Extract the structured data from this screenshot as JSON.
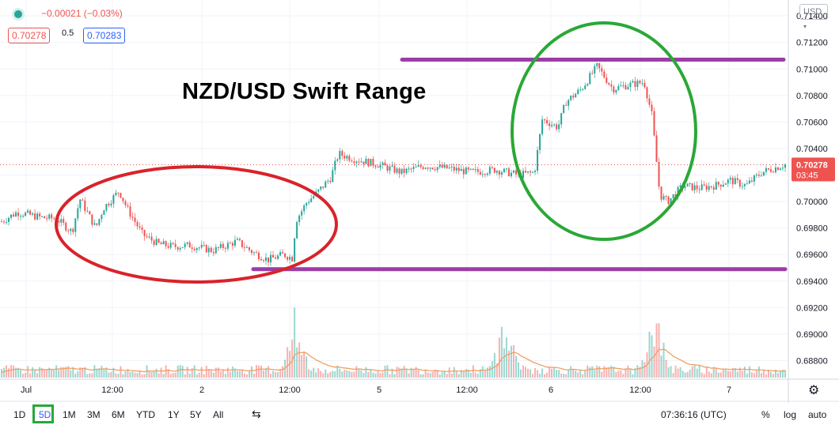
{
  "header": {
    "change_text": "−0.00021 (−0.03%)",
    "bid": "0.70278",
    "spread": "0.5",
    "ask": "0.70283",
    "currency": "USD"
  },
  "title": "NZD/USD Swift Range",
  "last_price": {
    "value": "0.70278",
    "countdown": "03:45"
  },
  "timeframes": [
    "1D",
    "5D",
    "1M",
    "3M",
    "6M",
    "YTD",
    "1Y",
    "5Y",
    "All"
  ],
  "active_timeframe": "5D",
  "clock": "07:36:16 (UTC)",
  "options": {
    "percent": "%",
    "log": "log",
    "auto": "auto"
  },
  "colors": {
    "up": "#26a69a",
    "down": "#ef5350",
    "red_ellipse": "#d9232a",
    "green_ellipse": "#2aa836",
    "purple_line": "#9b3ea4",
    "ma_line": "#f0a063"
  },
  "chart_data": {
    "type": "candlestick",
    "symbol": "NZD/USD",
    "ylim": [
      0.6866,
      0.7152
    ],
    "y_ticks": [
      "0.71400",
      "0.71200",
      "0.71000",
      "0.70800",
      "0.70600",
      "0.70400",
      "0.70200",
      "0.70000",
      "0.69800",
      "0.69600",
      "0.69400",
      "0.69200",
      "0.69000",
      "0.68800"
    ],
    "x_ticks": [
      "Jul",
      "12:00",
      "2",
      "12:00",
      "5",
      "12:00",
      "6",
      "12:00",
      "7"
    ],
    "price_path": [
      {
        "t": 0.0,
        "p": 0.6985
      },
      {
        "t": 0.02,
        "p": 0.6992
      },
      {
        "t": 0.05,
        "p": 0.6988
      },
      {
        "t": 0.07,
        "p": 0.6987
      },
      {
        "t": 0.09,
        "p": 0.6977
      },
      {
        "t": 0.1,
        "p": 0.7002
      },
      {
        "t": 0.12,
        "p": 0.698
      },
      {
        "t": 0.13,
        "p": 0.6995
      },
      {
        "t": 0.15,
        "p": 0.7008
      },
      {
        "t": 0.16,
        "p": 0.6995
      },
      {
        "t": 0.18,
        "p": 0.6975
      },
      {
        "t": 0.2,
        "p": 0.6968
      },
      {
        "t": 0.22,
        "p": 0.6966
      },
      {
        "t": 0.24,
        "p": 0.6967
      },
      {
        "t": 0.27,
        "p": 0.6963
      },
      {
        "t": 0.3,
        "p": 0.697
      },
      {
        "t": 0.32,
        "p": 0.6962
      },
      {
        "t": 0.34,
        "p": 0.6956
      },
      {
        "t": 0.36,
        "p": 0.696
      },
      {
        "t": 0.372,
        "p": 0.6957
      },
      {
        "t": 0.375,
        "p": 0.6985
      },
      {
        "t": 0.39,
        "p": 0.7
      },
      {
        "t": 0.4,
        "p": 0.7005
      },
      {
        "t": 0.42,
        "p": 0.7018
      },
      {
        "t": 0.43,
        "p": 0.7036
      },
      {
        "t": 0.45,
        "p": 0.7032
      },
      {
        "t": 0.48,
        "p": 0.7028
      },
      {
        "t": 0.51,
        "p": 0.7022
      },
      {
        "t": 0.54,
        "p": 0.7027
      },
      {
        "t": 0.57,
        "p": 0.7025
      },
      {
        "t": 0.6,
        "p": 0.7022
      },
      {
        "t": 0.63,
        "p": 0.7024
      },
      {
        "t": 0.66,
        "p": 0.702
      },
      {
        "t": 0.68,
        "p": 0.7022
      },
      {
        "t": 0.69,
        "p": 0.7062
      },
      {
        "t": 0.71,
        "p": 0.7056
      },
      {
        "t": 0.72,
        "p": 0.7075
      },
      {
        "t": 0.74,
        "p": 0.7085
      },
      {
        "t": 0.76,
        "p": 0.7102
      },
      {
        "t": 0.78,
        "p": 0.7085
      },
      {
        "t": 0.8,
        "p": 0.7088
      },
      {
        "t": 0.82,
        "p": 0.709
      },
      {
        "t": 0.83,
        "p": 0.7065
      },
      {
        "t": 0.84,
        "p": 0.7005
      },
      {
        "t": 0.85,
        "p": 0.7
      },
      {
        "t": 0.87,
        "p": 0.7012
      },
      {
        "t": 0.89,
        "p": 0.701
      },
      {
        "t": 0.91,
        "p": 0.7012
      },
      {
        "t": 0.93,
        "p": 0.7016
      },
      {
        "t": 0.95,
        "p": 0.7012
      },
      {
        "t": 0.97,
        "p": 0.7022
      },
      {
        "t": 1.0,
        "p": 0.7028
      }
    ],
    "volume_spikes_at": [
      0.375,
      0.643,
      0.835
    ],
    "annotations": {
      "resistance_price": 0.7107,
      "support_price": 0.6949
    }
  }
}
